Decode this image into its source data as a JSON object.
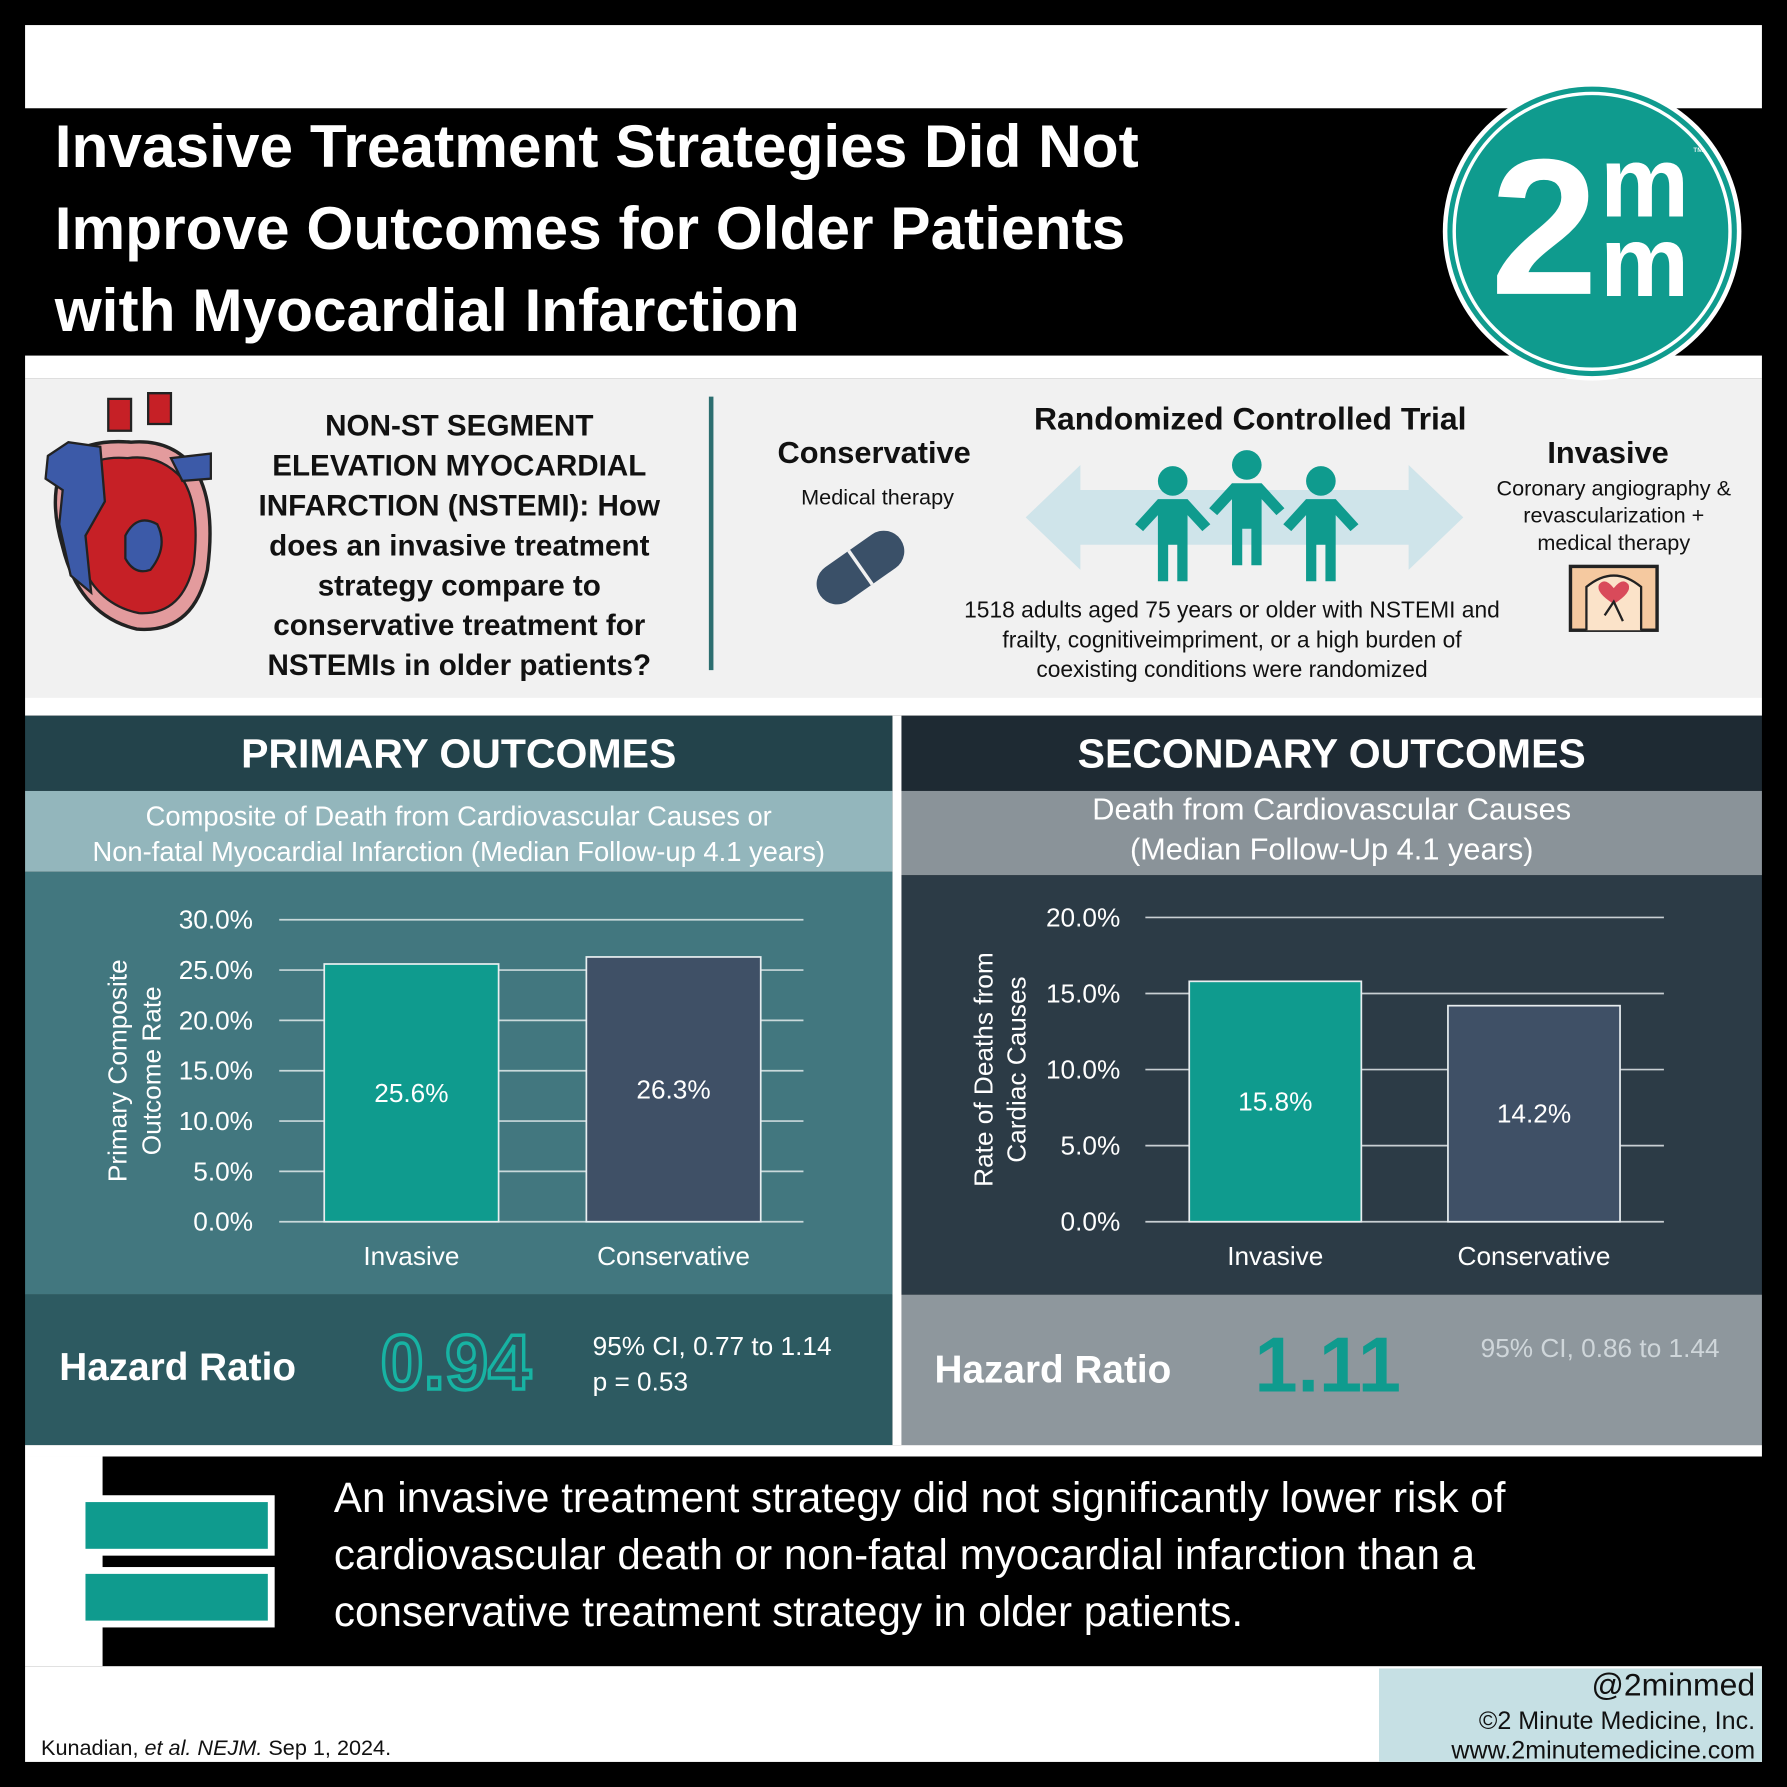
{
  "header": {
    "title": [
      "Invasive Treatment Strategies Did Not",
      "Improve Outcomes for Older Patients",
      "with Myocardial Infarction"
    ],
    "logo": [
      "2",
      "m",
      "m"
    ],
    "trademark": "™"
  },
  "question": [
    "NON-ST SEGMENT",
    "ELEVATION MYOCARDIAL",
    "INFARCTION (NSTEMI): How",
    "does an invasive treatment",
    "strategy compare to",
    "conservative treatment for",
    "NSTEMIs in older patients?"
  ],
  "trial": {
    "title": "Randomized Controlled Trial",
    "left_arm": {
      "name": "Conservative",
      "description": [
        "Medical therapy"
      ]
    },
    "right_arm": {
      "name": "Invasive",
      "description": [
        "Coronary angiography &",
        "revascularization +",
        "medical therapy"
      ]
    },
    "population": [
      "1518 adults aged 75 years or older with NSTEMI and",
      "frailty, cognitiveimpriment, or a high burden of",
      "coexisting conditions were randomized"
    ]
  },
  "chart_data": [
    {
      "type": "bar",
      "title": "PRIMARY OUTCOMES",
      "subtitle": [
        "Composite of Death from Cardiovascular Causes or",
        "Non-fatal Myocardial Infarction (Median Follow-up 4.1 years)"
      ],
      "y_label": [
        "Primary Composite",
        "Outcome Rate"
      ],
      "categories": [
        "Invasive",
        "Conservative"
      ],
      "values": [
        25.6,
        26.3
      ],
      "value_labels": [
        "25.6%",
        "26.3%"
      ],
      "colors": [
        "#0f9b8e",
        "#3f5066"
      ],
      "ylim": [
        0,
        30
      ],
      "yticks": [
        {
          "value": 0,
          "label": "0.0%"
        },
        {
          "value": 5,
          "label": "5.0%"
        },
        {
          "value": 10,
          "label": "10.0%"
        },
        {
          "value": 15,
          "label": "15.0%"
        },
        {
          "value": 20,
          "label": "20.0%"
        },
        {
          "value": 25,
          "label": "25.0%"
        },
        {
          "value": 30,
          "label": "30.0%"
        }
      ],
      "grid": true,
      "hazard_ratio": {
        "label": "Hazard Ratio",
        "value": 0.94,
        "details": [
          "95% CI, 0.77 to 1.14",
          "p = 0.53"
        ]
      }
    },
    {
      "type": "bar",
      "title": "SECONDARY OUTCOMES",
      "subtitle": [
        "Death from Cardiovascular Causes",
        "(Median Follow-Up 4.1 years)"
      ],
      "y_label": [
        "Rate of Deaths from",
        "Cardiac Causes"
      ],
      "categories": [
        "Invasive",
        "Conservative"
      ],
      "values": [
        15.8,
        14.2
      ],
      "value_labels": [
        "15.8%",
        "14.2%"
      ],
      "colors": [
        "#0f9b8e",
        "#3f5066"
      ],
      "ylim": [
        0,
        20
      ],
      "yticks": [
        {
          "value": 0,
          "label": "0.0%"
        },
        {
          "value": 5,
          "label": "5.0%"
        },
        {
          "value": 10,
          "label": "10.0%"
        },
        {
          "value": 15,
          "label": "15.0%"
        },
        {
          "value": 20,
          "label": "20.0%"
        }
      ],
      "grid": true,
      "hazard_ratio": {
        "label": "Hazard Ratio",
        "value": 1.11,
        "details": [
          "95% CI, 0.86 to 1.44"
        ]
      }
    }
  ],
  "conclusion": [
    "An invasive treatment strategy did not significantly lower risk of",
    "cardiovascular death or non-fatal myocardial infarction than a",
    "conservative treatment strategy in older patients."
  ],
  "footer": {
    "citation": [
      "Kunadian, ",
      "et al.",
      " NEJM.",
      " Sep 1, 2024."
    ],
    "handle": "@2minmed",
    "copyright": "©2 Minute Medicine, Inc.",
    "website": "www.2minutemedicine.com"
  }
}
